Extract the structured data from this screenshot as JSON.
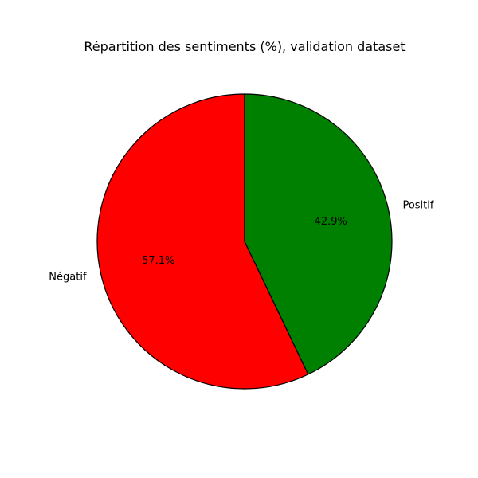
{
  "chart_data": {
    "type": "pie",
    "title": "Répartition des sentiments (%), validation dataset",
    "labels": [
      "Négatif",
      "Positif"
    ],
    "values": [
      57.1,
      42.9
    ],
    "percent_labels": [
      "57.1%",
      "42.9%"
    ],
    "colors": [
      "#ff0000",
      "#008000"
    ],
    "edge_color": "#000000",
    "start_angle_deg": 90,
    "direction": "counterclockwise"
  }
}
